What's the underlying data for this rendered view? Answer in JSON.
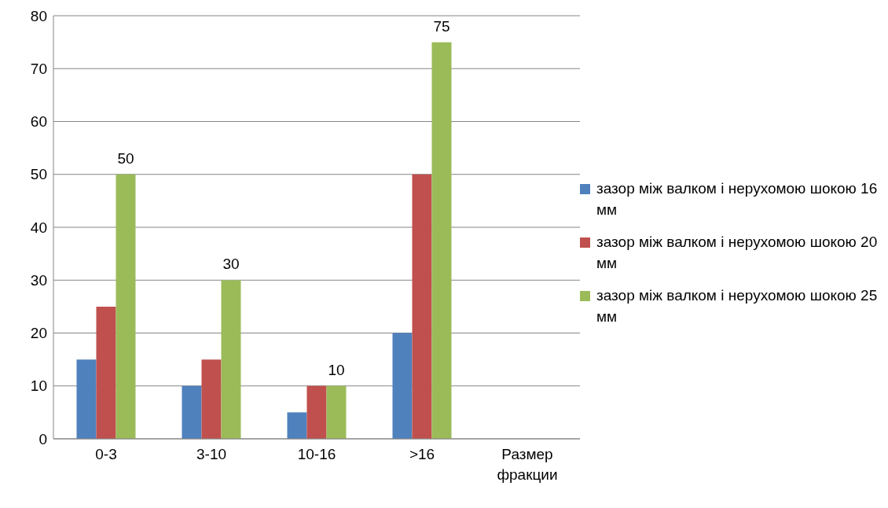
{
  "chart_data": {
    "type": "bar",
    "categories": [
      "0-3",
      "3-10",
      "10-16",
      ">16",
      "Размер фракции"
    ],
    "series": [
      {
        "name": "зазор між валком і нерухомою шокою 16 мм",
        "color": "#4f81bd",
        "values": [
          15,
          10,
          5,
          20,
          null
        ]
      },
      {
        "name": "зазор між валком і нерухомою шокою 20 мм",
        "color": "#c0504d",
        "values": [
          25,
          15,
          10,
          50,
          null
        ]
      },
      {
        "name": "зазор між валком і нерухомою шокою 25 мм",
        "color": "#9bbb59",
        "values": [
          50,
          30,
          10,
          75,
          null
        ],
        "value_labels": [
          "50",
          "30",
          "10",
          "75",
          null
        ]
      }
    ],
    "ylim": [
      0,
      80
    ],
    "yticks": [
      0,
      10,
      20,
      30,
      40,
      50,
      60,
      70,
      80
    ],
    "grid": "y",
    "legend": "right"
  }
}
